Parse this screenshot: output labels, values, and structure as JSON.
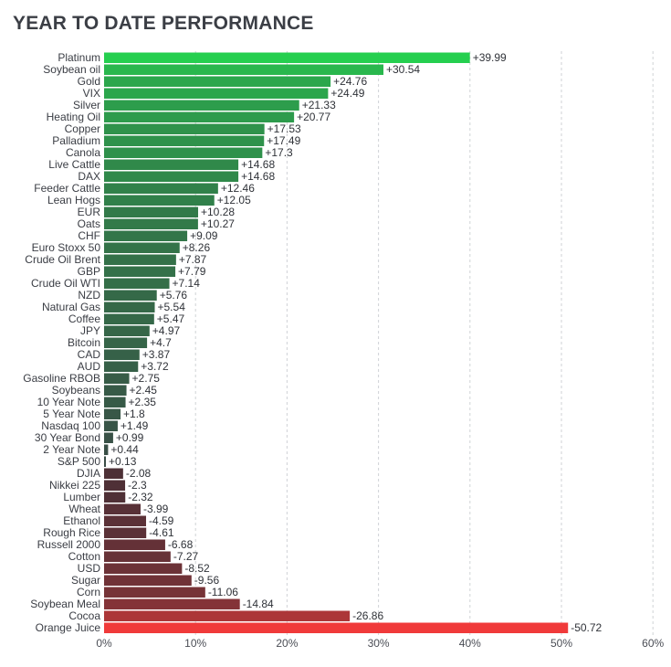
{
  "title": "YEAR TO DATE PERFORMANCE",
  "chart_data": {
    "type": "bar",
    "orientation": "horizontal",
    "title": "YEAR TO DATE PERFORMANCE",
    "xlabel": "",
    "ylabel": "",
    "xlim": [
      0,
      60
    ],
    "x_ticks": [
      0,
      10,
      20,
      30,
      40,
      50,
      60
    ],
    "x_tick_labels": [
      "0%",
      "10%",
      "20%",
      "30%",
      "40%",
      "50%",
      "60%"
    ],
    "grid": "vertical dashed",
    "bars_show": "absolute value; sign shown in data label",
    "colors": {
      "positive_high": "#25cf4f",
      "positive_low": "#3a4a46",
      "negative_low": "#3d2f36",
      "negative_high": "#f03a3a"
    },
    "categories": [
      "Platinum",
      "Soybean oil",
      "Gold",
      "VIX",
      "Silver",
      "Heating Oil",
      "Copper",
      "Palladium",
      "Canola",
      "Live Cattle",
      "DAX",
      "Feeder Cattle",
      "Lean Hogs",
      "EUR",
      "Oats",
      "CHF",
      "Euro Stoxx 50",
      "Crude Oil Brent",
      "GBP",
      "Crude Oil WTI",
      "NZD",
      "Natural Gas",
      "Coffee",
      "JPY",
      "Bitcoin",
      "CAD",
      "AUD",
      "Gasoline RBOB",
      "Soybeans",
      "10 Year Note",
      "5 Year Note",
      "Nasdaq 100",
      "30 Year Bond",
      "2 Year Note",
      "S&P 500",
      "DJIA",
      "Nikkei 225",
      "Lumber",
      "Wheat",
      "Ethanol",
      "Rough Rice",
      "Russell 2000",
      "Cotton",
      "USD",
      "Sugar",
      "Corn",
      "Soybean Meal",
      "Cocoa",
      "Orange Juice"
    ],
    "values": [
      39.99,
      30.54,
      24.76,
      24.49,
      21.33,
      20.77,
      17.53,
      17.49,
      17.3,
      14.68,
      14.68,
      12.46,
      12.05,
      10.28,
      10.27,
      9.09,
      8.26,
      7.87,
      7.79,
      7.14,
      5.76,
      5.54,
      5.47,
      4.97,
      4.7,
      3.87,
      3.72,
      2.75,
      2.45,
      2.35,
      1.8,
      1.49,
      0.99,
      0.44,
      0.13,
      -2.08,
      -2.3,
      -2.32,
      -3.99,
      -4.59,
      -4.61,
      -6.68,
      -7.27,
      -8.52,
      -9.56,
      -11.06,
      -14.84,
      -26.86,
      -50.72
    ],
    "value_labels": [
      "+39.99",
      "+30.54",
      "+24.76",
      "+24.49",
      "+21.33",
      "+20.77",
      "+17.53",
      "+17.49",
      "+17.3",
      "+14.68",
      "+14.68",
      "+12.46",
      "+12.05",
      "+10.28",
      "+10.27",
      "+9.09",
      "+8.26",
      "+7.87",
      "+7.79",
      "+7.14",
      "+5.76",
      "+5.54",
      "+5.47",
      "+4.97",
      "+4.7",
      "+3.87",
      "+3.72",
      "+2.75",
      "+2.45",
      "+2.35",
      "+1.8",
      "+1.49",
      "+0.99",
      "+0.44",
      "+0.13",
      "-2.08",
      "-2.3",
      "-2.32",
      "-3.99",
      "-4.59",
      "-4.61",
      "-6.68",
      "-7.27",
      "-8.52",
      "-9.56",
      "-11.06",
      "-14.84",
      "-26.86",
      "-50.72"
    ]
  }
}
